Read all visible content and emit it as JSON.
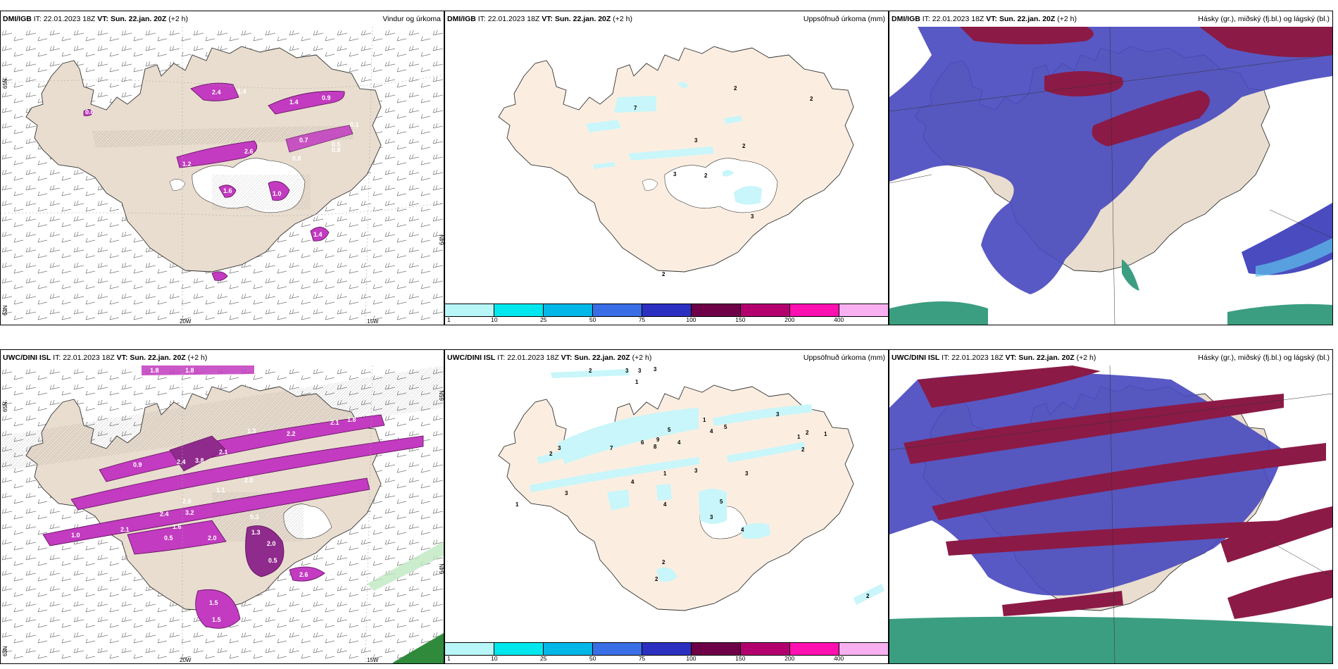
{
  "top_row": {
    "wind": {
      "model": "DMI/IGB",
      "it_label": "IT:",
      "init_time": "22.01.2023 18Z",
      "vt_label": "VT:",
      "valid_time": "Sun. 22.jan. 20Z",
      "lead": "(+2 h)",
      "title": "Vindur og úrkoma",
      "contours": [
        "0.6",
        "2.4",
        "1.4",
        "1.4",
        "0.9",
        "0.1",
        "0.7",
        "0.5",
        "2.6",
        "1.2",
        "0.8",
        "0.8",
        "1.6",
        "1.0",
        "1.4"
      ]
    },
    "accum": {
      "model": "DMI/IGB",
      "it_label": "IT:",
      "init_time": "22.01.2023 18Z",
      "vt_label": "VT:",
      "valid_time": "Sun. 22.jan. 20Z",
      "lead": "(+2 h)",
      "title": "Uppsöfnuð úrkoma (mm)",
      "contours": [
        "7",
        "2",
        "2",
        "3",
        "2",
        "3",
        "2",
        "3",
        "2"
      ]
    },
    "cloud": {
      "model": "DMI/IGB",
      "it_label": "IT:",
      "init_time": "22.01.2023 18Z",
      "vt_label": "VT:",
      "valid_time": "Sun. 22.jan. 20Z",
      "lead": "(+2 h)",
      "title": "Hásky (gr.), miðský (fj.bl.) og lágský (bl.)"
    }
  },
  "bottom_row": {
    "wind": {
      "model": "UWC/DINI ISL",
      "it_label": "IT:",
      "init_time": "22.01.2023 18Z",
      "vt_label": "VT:",
      "valid_time": "Sun. 22.jan. 20Z",
      "lead": "(+2 h)",
      "title": "",
      "contours": [
        "1.8",
        "1.8",
        "0.9",
        "1.3",
        "2.2",
        "2.1",
        "1.8",
        "2.1",
        "3.8",
        "2.4",
        "0.9",
        "2.0",
        "1.1",
        "2.8",
        "3.2",
        "2.4",
        "1.6",
        "0.3",
        "2.0",
        "1.3",
        "2.0",
        "0.5",
        "1.0",
        "2.1",
        "0.5",
        "2.6",
        "1.5",
        "1.5"
      ]
    },
    "accum": {
      "model": "UWC/DINI ISL",
      "it_label": "IT:",
      "init_time": "22.01.2023 18Z",
      "vt_label": "VT:",
      "valid_time": "Sun. 22.jan. 20Z",
      "lead": "(+2 h)",
      "title": "Uppsöfnuð úrkoma (mm)",
      "contours": [
        "2",
        "3",
        "3",
        "3",
        "1",
        "1",
        "3",
        "5",
        "4",
        "5",
        "6",
        "9",
        "7",
        "8",
        "4",
        "3",
        "2",
        "1",
        "1",
        "2",
        "2",
        "3",
        "3",
        "4",
        "1",
        "4",
        "3",
        "1",
        "5",
        "3",
        "4",
        "2",
        "2",
        "2"
      ]
    },
    "cloud": {
      "model": "UWC/DINI ISL",
      "it_label": "IT:",
      "init_time": "22.01.2023 18Z",
      "vt_label": "VT:",
      "valid_time": "Sun. 22.jan. 20Z",
      "lead": "(+2 h)",
      "title": "Hásky (gr.), miðský (fj.bl.) og lágský (bl.)"
    }
  },
  "axes": {
    "lon_labels": [
      "20W",
      "15W"
    ],
    "lat_labels": [
      "65N",
      "64N",
      "63N"
    ]
  },
  "colorbar": {
    "ticks": [
      "1",
      "10",
      "25",
      "50",
      "75",
      "100",
      "150",
      "200",
      "400"
    ],
    "colors": [
      "#b8f6f8",
      "#00e8ee",
      "#00b7e8",
      "#3a6ee6",
      "#2c30c0",
      "#6d0046",
      "#b3006f",
      "#ff10b0",
      "#f8b0f0"
    ]
  },
  "colors": {
    "land": "#e9ddcf",
    "land_accum": "#fbeee1",
    "precip": "#c23bc0",
    "precip_light": "#ddb0de",
    "cyan": "#c8f6fa",
    "cloud_high": "#8b1a46",
    "cloud_mid": "#4a4bbf",
    "cloud_low": "#3b9e80"
  }
}
